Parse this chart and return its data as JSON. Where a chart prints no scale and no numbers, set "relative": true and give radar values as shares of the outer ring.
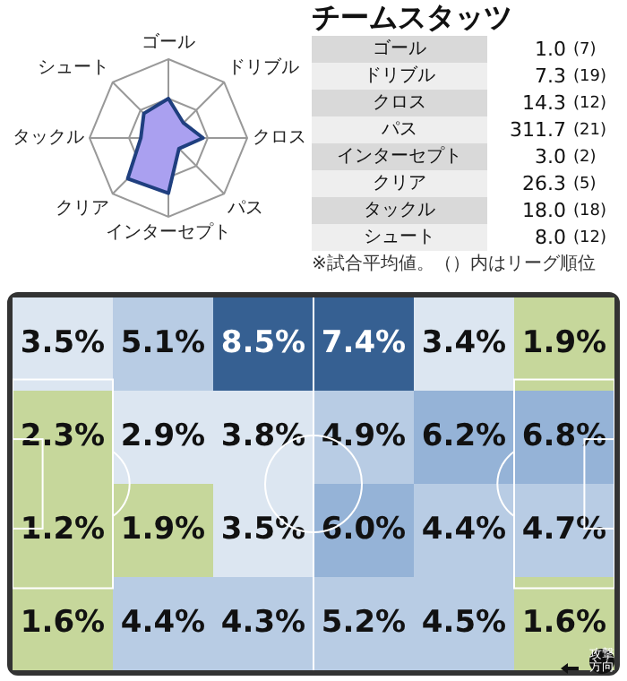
{
  "chart_data": [
    {
      "type": "radar",
      "categories": [
        "ゴール",
        "ドリブル",
        "クロス",
        "パス",
        "インターセプト",
        "クリア",
        "タックル",
        "シュート"
      ],
      "relative": true,
      "grid": true,
      "series": [
        {
          "color": "#1f3f7f",
          "values": [
            0.5,
            0.27,
            0.44,
            0.19,
            0.7,
            0.73,
            0.35,
            0.44
          ]
        }
      ]
    },
    {
      "type": "other",
      "title": "チームスタッツ",
      "categories": [
        "ゴール",
        "ドリブル",
        "クロス",
        "パス",
        "インターセプト",
        "クリア",
        "タックル",
        "シュート"
      ],
      "series": [
        {
          "values": [
            1.0,
            7.3,
            14.3,
            311.7,
            3.0,
            26.3,
            18.0,
            8.0
          ],
          "value_labels": [
            "1.0",
            "7.3",
            "14.3",
            "311.7",
            "3.0",
            "26.3",
            "18.0",
            "8.0"
          ]
        },
        {
          "values": [
            7,
            19,
            12,
            21,
            2,
            5,
            18,
            12
          ],
          "value_labels": [
            "(7)",
            "(19)",
            "(12)",
            "(21)",
            "(2)",
            "(5)",
            "(18)",
            "(12)"
          ]
        }
      ],
      "annotations": [
        "※試合平均値。（）内はリーグ順位"
      ]
    },
    {
      "type": "heatmap",
      "categories": [
        null,
        null,
        null,
        null,
        null,
        null
      ],
      "y_categories": [
        null,
        null,
        null,
        null
      ],
      "cells": [
        [
          3.5,
          5.1,
          8.5,
          7.4,
          3.4,
          1.9
        ],
        [
          2.3,
          2.9,
          3.8,
          4.9,
          6.2,
          6.8
        ],
        [
          1.2,
          1.9,
          3.5,
          6.0,
          4.4,
          4.7
        ],
        [
          1.6,
          4.4,
          4.3,
          5.2,
          4.5,
          1.6
        ]
      ],
      "cell_labels": [
        [
          "3.5%",
          "5.1%",
          "8.5%",
          "7.4%",
          "3.4%",
          "1.9%"
        ],
        [
          "2.3%",
          "2.9%",
          "3.8%",
          "4.9%",
          "6.2%",
          "6.8%"
        ],
        [
          "1.2%",
          "1.9%",
          "3.5%",
          "6.0%",
          "4.4%",
          "4.7%"
        ],
        [
          "1.6%",
          "4.4%",
          "4.3%",
          "5.2%",
          "4.5%",
          "1.6%"
        ]
      ],
      "annotations": [
        "攻撃方向"
      ]
    }
  ]
}
